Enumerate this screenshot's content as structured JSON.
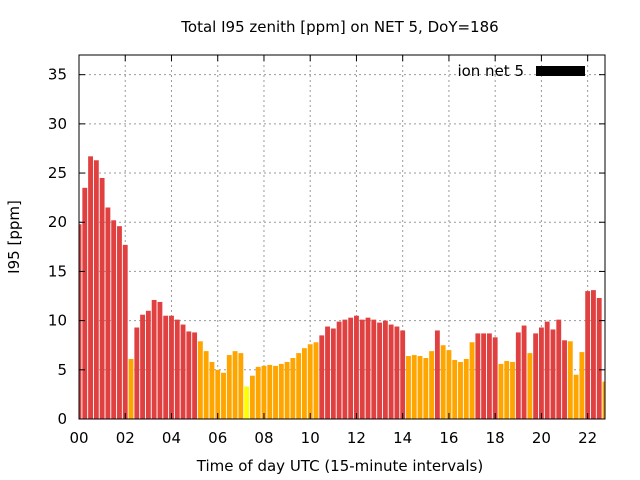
{
  "chart_data": {
    "type": "bar",
    "title": "Total I95 zenith [ppm] on NET 5, DoY=186",
    "xlabel": "Time of day UTC (15-minute intervals)",
    "ylabel": "I95 [ppm]",
    "ylim": [
      0,
      37
    ],
    "xlim": [
      0,
      22.75
    ],
    "bar_width": 0.21,
    "x_ticks": [
      "00",
      "02",
      "04",
      "06",
      "08",
      "10",
      "12",
      "14",
      "16",
      "18",
      "20",
      "22"
    ],
    "x_tick_values": [
      0,
      2,
      4,
      6,
      8,
      10,
      12,
      14,
      16,
      18,
      20,
      22
    ],
    "y_ticks": [
      0,
      5,
      10,
      15,
      20,
      25,
      30,
      35
    ],
    "grid": true,
    "legend": {
      "label": "ion net 5",
      "color": "#000000",
      "position": "top-right"
    },
    "colors": {
      "high": "#e04040",
      "mid": "#ffa500",
      "low": "#ffff00"
    },
    "x": [
      0.0,
      0.25,
      0.5,
      0.75,
      1.0,
      1.25,
      1.5,
      1.75,
      2.0,
      2.25,
      2.5,
      2.75,
      3.0,
      3.25,
      3.5,
      3.75,
      4.0,
      4.25,
      4.5,
      4.75,
      5.0,
      5.25,
      5.5,
      5.75,
      6.0,
      6.25,
      6.5,
      6.75,
      7.0,
      7.25,
      7.5,
      7.75,
      8.0,
      8.25,
      8.5,
      8.75,
      9.0,
      9.25,
      9.5,
      9.75,
      10.0,
      10.25,
      10.5,
      10.75,
      11.0,
      11.25,
      11.5,
      11.75,
      12.0,
      12.25,
      12.5,
      12.75,
      13.0,
      13.25,
      13.5,
      13.75,
      14.0,
      14.25,
      14.5,
      14.75,
      15.0,
      15.25,
      15.5,
      15.75,
      16.0,
      16.25,
      16.5,
      16.75,
      17.0,
      17.25,
      17.5,
      17.75,
      18.0,
      18.25,
      18.5,
      18.75,
      19.0,
      19.25,
      19.5,
      19.75,
      20.0,
      20.25,
      20.5,
      20.75,
      21.0,
      21.25,
      21.5,
      21.75,
      22.0,
      22.25,
      22.5,
      22.75
    ],
    "values": [
      19.8,
      23.5,
      26.7,
      26.3,
      24.5,
      21.5,
      20.2,
      19.6,
      17.7,
      6.1,
      9.3,
      10.6,
      11.0,
      12.1,
      11.9,
      10.5,
      10.5,
      10.1,
      9.6,
      8.9,
      8.8,
      7.9,
      6.9,
      5.8,
      5.0,
      4.7,
      6.5,
      6.9,
      6.7,
      3.3,
      4.4,
      5.3,
      5.4,
      5.5,
      5.4,
      5.6,
      5.8,
      6.2,
      6.7,
      7.2,
      7.6,
      7.8,
      8.5,
      9.4,
      9.2,
      9.9,
      10.1,
      10.3,
      10.5,
      10.1,
      10.3,
      10.1,
      9.8,
      10.0,
      9.6,
      9.4,
      9.0,
      6.4,
      6.5,
      6.4,
      6.2,
      6.9,
      9.0,
      7.5,
      7.0,
      6.0,
      5.8,
      6.1,
      7.8,
      8.7,
      8.7,
      8.7,
      8.3,
      5.6,
      5.9,
      5.8,
      8.8,
      9.5,
      6.7,
      8.7,
      9.3,
      9.9,
      9.1,
      10.1,
      8.0,
      7.9,
      4.5,
      6.8,
      13.0,
      13.1,
      12.3,
      3.8
    ],
    "levels": [
      "high",
      "high",
      "high",
      "high",
      "high",
      "high",
      "high",
      "high",
      "high",
      "mid",
      "high",
      "high",
      "high",
      "high",
      "high",
      "high",
      "high",
      "high",
      "high",
      "high",
      "high",
      "mid",
      "mid",
      "mid",
      "mid",
      "mid",
      "mid",
      "mid",
      "mid",
      "low",
      "mid",
      "mid",
      "mid",
      "mid",
      "mid",
      "mid",
      "mid",
      "mid",
      "mid",
      "mid",
      "mid",
      "mid",
      "high",
      "high",
      "high",
      "high",
      "high",
      "high",
      "high",
      "high",
      "high",
      "high",
      "high",
      "high",
      "high",
      "high",
      "high",
      "mid",
      "mid",
      "mid",
      "mid",
      "mid",
      "high",
      "mid",
      "mid",
      "mid",
      "mid",
      "mid",
      "mid",
      "high",
      "high",
      "high",
      "high",
      "mid",
      "mid",
      "mid",
      "high",
      "high",
      "mid",
      "high",
      "high",
      "high",
      "high",
      "high",
      "high",
      "mid",
      "mid",
      "mid",
      "high",
      "high",
      "high",
      "mid"
    ]
  }
}
